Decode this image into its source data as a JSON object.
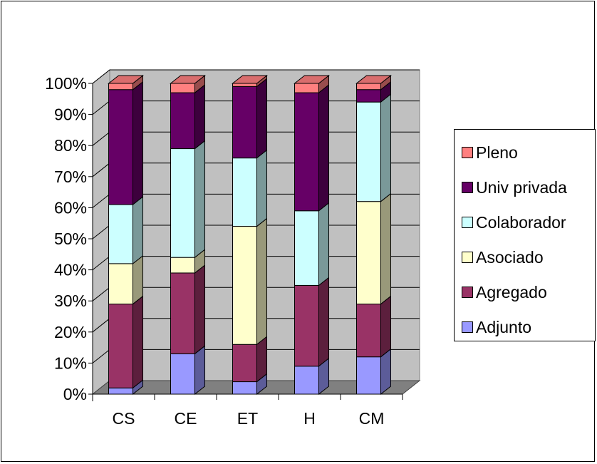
{
  "chart_data": {
    "type": "bar",
    "stacked": true,
    "percent": true,
    "three_d": true,
    "title": "",
    "xlabel": "",
    "ylabel": "",
    "ylim": [
      0,
      100
    ],
    "y_ticks": [
      "0%",
      "10%",
      "20%",
      "30%",
      "40%",
      "50%",
      "60%",
      "70%",
      "80%",
      "90%",
      "100%"
    ],
    "categories": [
      "CS",
      "CE",
      "ET",
      "H",
      "CM"
    ],
    "grid": true,
    "legend_position": "right",
    "series": [
      {
        "name": "Adjunto",
        "color": "#9999ff",
        "values": [
          2,
          13,
          4,
          9,
          12
        ]
      },
      {
        "name": "Agregado",
        "color": "#993366",
        "values": [
          27,
          26,
          12,
          26,
          17
        ]
      },
      {
        "name": "Asociado",
        "color": "#ffffcc",
        "values": [
          13,
          5,
          38,
          0,
          33
        ]
      },
      {
        "name": "Colaborador",
        "color": "#ccffff",
        "values": [
          19,
          35,
          22,
          24,
          32
        ]
      },
      {
        "name": "Univ privada",
        "color": "#660066",
        "values": [
          37,
          18,
          23,
          38,
          4
        ]
      },
      {
        "name": "Pleno",
        "color": "#ff8080",
        "values": [
          2,
          3,
          1,
          3,
          2
        ]
      }
    ]
  }
}
